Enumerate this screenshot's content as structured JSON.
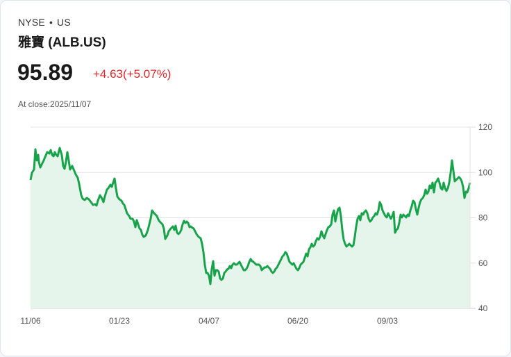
{
  "header": {
    "exchange": "NYSE",
    "separator": "•",
    "market": "US",
    "title": "雅寶 (ALB.US)",
    "price": "95.89",
    "change": "+4.63(+5.07%)",
    "close_label": "At close:2025/11/07"
  },
  "colors": {
    "line": "#17a34a",
    "fill": "#e6f5ec",
    "change": "#e0262b",
    "grid": "#e3e3e3"
  },
  "chart_data": {
    "type": "area",
    "title": "雅寶 (ALB.US)",
    "xlabel": "",
    "ylabel": "",
    "ylim": [
      40,
      120
    ],
    "yticks": [
      120,
      100,
      80,
      60,
      40
    ],
    "xtick_labels": [
      "11/06",
      "01/23",
      "04/07",
      "06/20",
      "09/03"
    ],
    "grid": true,
    "legend": null,
    "x": [
      "11/06",
      "11/13",
      "11/20",
      "12/02",
      "12/10",
      "12/18",
      "12/27",
      "01/06",
      "01/14",
      "01/23",
      "01/31",
      "02/10",
      "02/19",
      "02/27",
      "03/07",
      "03/17",
      "03/25",
      "04/02",
      "04/07",
      "04/15",
      "04/24",
      "05/02",
      "05/12",
      "05/20",
      "05/29",
      "06/06",
      "06/13",
      "06/20",
      "06/30",
      "07/09",
      "07/17",
      "07/25",
      "08/04",
      "08/12",
      "08/20",
      "08/28",
      "09/03",
      "09/12",
      "09/22",
      "09/30",
      "10/08",
      "10/16",
      "10/24",
      "11/03",
      "11/07"
    ],
    "series": [
      {
        "name": "ALB.US",
        "values": [
          97,
          110,
          103,
          109,
          111,
          102,
          94,
          89,
          86,
          90,
          96,
          88,
          83,
          77,
          84,
          78,
          73,
          79,
          74,
          60,
          53,
          58,
          58,
          60,
          56,
          60,
          57,
          61,
          57,
          62,
          59,
          66,
          66,
          70,
          80,
          84,
          69,
          78,
          80,
          82,
          80,
          92,
          98,
          95,
          95.89
        ]
      }
    ]
  }
}
